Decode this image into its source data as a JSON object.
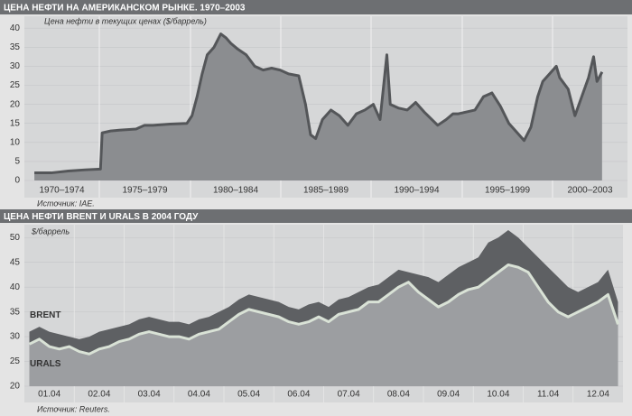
{
  "chart_data": [
    {
      "type": "area",
      "title": "ЦЕНА НЕФТИ НА АМЕРИКАНСКОМ РЫНКЕ. 1970–2003",
      "y_label": "Цена нефти в текущих ценах ($/баррель)",
      "source": "Источник: IAE.",
      "categories": [
        "1970–1974",
        "1975–1979",
        "1980–1984",
        "1985–1989",
        "1990–1994",
        "1995–1999",
        "2000–2003"
      ],
      "x": [
        1970,
        1971,
        1972,
        1973,
        1973.9,
        1974,
        1974.5,
        1975,
        1976,
        1976.5,
        1977,
        1978,
        1979,
        1979.3,
        1979.6,
        1979.9,
        1980.2,
        1980.6,
        1981,
        1981.3,
        1981.6,
        1982,
        1982.5,
        1983,
        1983.5,
        1984,
        1984.5,
        1985,
        1985.6,
        1986,
        1986.3,
        1986.6,
        1987,
        1987.5,
        1988,
        1988.5,
        1989,
        1989.5,
        1990,
        1990.4,
        1990.8,
        1991,
        1991.5,
        1992,
        1992.5,
        1993,
        1993.8,
        1994.3,
        1994.7,
        1995,
        1995.5,
        1996,
        1996.5,
        1997,
        1997.5,
        1998,
        1998.5,
        1998.9,
        1999.3,
        1999.7,
        2000,
        2000.4,
        2000.8,
        2001,
        2001.5,
        2001.9,
        2002.3,
        2002.7,
        2003,
        2003.2,
        2003.5
      ],
      "values": [
        2,
        2,
        2.5,
        2.8,
        3,
        12.5,
        13,
        13.2,
        13.5,
        14.5,
        14.5,
        14.8,
        15,
        17,
        22,
        28,
        33,
        35,
        38.5,
        37.5,
        36,
        34.5,
        33,
        30,
        29,
        29.5,
        29,
        28,
        27.5,
        20,
        12,
        11,
        16,
        18.5,
        17,
        14.5,
        17.5,
        18.5,
        20,
        16,
        33,
        20,
        19,
        18.5,
        20.5,
        18,
        14.5,
        16,
        17.5,
        17.5,
        18,
        18.5,
        22,
        23,
        19.5,
        15,
        12.5,
        10.5,
        14,
        22,
        26,
        28,
        30,
        27,
        24,
        17,
        22,
        27,
        32.5,
        26,
        28.5
      ],
      "color": "#8b8d90",
      "line_color": "#545659",
      "xlim": [
        1969.41,
        2005
      ],
      "ylim": [
        0,
        41
      ],
      "yticks": [
        0,
        5,
        10,
        15,
        20,
        25,
        30,
        35,
        40
      ],
      "grid": true
    },
    {
      "type": "area",
      "title": "ЦЕНА НЕФТИ BRENT И URALS В 2004 ГОДУ",
      "y_label": "$/баррель",
      "source": "Источник: Reuters.",
      "categories": [
        "01.04",
        "02.04",
        "03.04",
        "04.04",
        "05.04",
        "06.04",
        "07.04",
        "08.04",
        "09.04",
        "10.04",
        "11.04",
        "12.04"
      ],
      "series": [
        {
          "name": "BRENT",
          "color": "#5e6063",
          "values": [
            [
              31,
              32,
              31,
              30.5,
              30
            ],
            [
              29.5,
              30,
              31,
              31.5,
              32
            ],
            [
              32.5,
              33.5,
              34,
              33.5,
              33
            ],
            [
              33,
              32.5,
              33.5,
              34,
              35
            ],
            [
              36,
              37.5,
              38.5,
              38,
              37.5
            ],
            [
              37,
              36,
              35.5,
              36.5,
              37
            ],
            [
              36,
              37.5,
              38,
              39,
              40
            ],
            [
              40.5,
              42,
              43.5,
              43,
              42.5
            ],
            [
              42,
              41,
              42.5,
              44,
              45
            ],
            [
              46,
              49,
              50,
              51.5,
              50
            ],
            [
              48,
              46,
              44,
              42,
              40
            ],
            [
              39,
              40,
              41,
              43.5,
              37
            ]
          ]
        },
        {
          "name": "URALS",
          "color": "#9c9ea1",
          "line_color": "#d9e2d6",
          "values": [
            [
              28.5,
              29.5,
              28,
              27.5,
              28
            ],
            [
              27,
              26.5,
              27.5,
              28,
              29
            ],
            [
              29.5,
              30.5,
              31,
              30.5,
              30
            ],
            [
              30,
              29.5,
              30.5,
              31,
              31.5
            ],
            [
              33,
              34.5,
              35.5,
              35,
              34.5
            ],
            [
              34,
              33,
              32.5,
              33,
              34
            ],
            [
              33,
              34.5,
              35,
              35.5,
              37
            ],
            [
              37,
              38.5,
              40,
              41,
              39
            ],
            [
              37.5,
              36,
              37,
              38.5,
              39.5
            ],
            [
              40,
              41.5,
              43,
              44.5,
              44
            ],
            [
              43,
              40,
              37,
              35,
              34
            ],
            [
              35,
              36,
              37,
              38.5,
              32.5
            ]
          ]
        }
      ],
      "ylim": [
        20,
        51.5
      ],
      "yticks": [
        20,
        25,
        30,
        35,
        40,
        45,
        50
      ],
      "grid": true
    }
  ]
}
